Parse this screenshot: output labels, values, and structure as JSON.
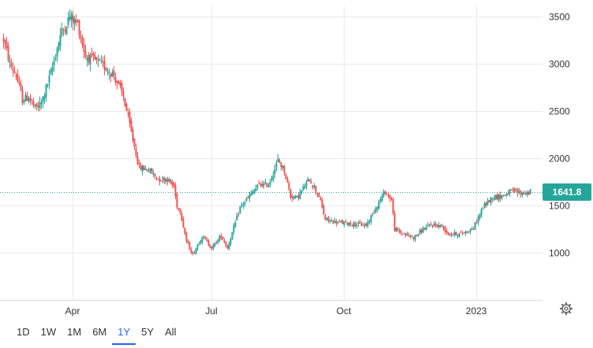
{
  "chart_data": {
    "type": "candlestick",
    "yticks": [
      1000,
      1500,
      2000,
      2500,
      3000,
      3500
    ],
    "ylim": [
      650,
      3700
    ],
    "xticks": [
      "Apr",
      "Jul",
      "Oct",
      "2023"
    ],
    "last_price": 1641.8,
    "last_price_label": "1641.8",
    "grid": true,
    "colors": {
      "up": "#26a69a",
      "down": "#ef5350",
      "price_line": "#26a69a"
    },
    "path": [
      [
        0,
        3260
      ],
      [
        4,
        3000
      ],
      [
        8,
        2880
      ],
      [
        12,
        2620
      ],
      [
        16,
        2650
      ],
      [
        20,
        2520
      ],
      [
        24,
        2580
      ],
      [
        30,
        2900
      ],
      [
        36,
        3300
      ],
      [
        42,
        3500
      ],
      [
        47,
        3420
      ],
      [
        52,
        3080
      ],
      [
        58,
        3030
      ],
      [
        64,
        2970
      ],
      [
        70,
        2880
      ],
      [
        76,
        2650
      ],
      [
        82,
        2200
      ],
      [
        86,
        1900
      ],
      [
        92,
        1880
      ],
      [
        98,
        1780
      ],
      [
        104,
        1780
      ],
      [
        108,
        1700
      ],
      [
        110,
        1500
      ],
      [
        112,
        1450
      ],
      [
        116,
        1120
      ],
      [
        120,
        980
      ],
      [
        126,
        1180
      ],
      [
        132,
        1050
      ],
      [
        138,
        1180
      ],
      [
        142,
        1050
      ],
      [
        150,
        1480
      ],
      [
        156,
        1600
      ],
      [
        162,
        1720
      ],
      [
        168,
        1720
      ],
      [
        174,
        1980
      ],
      [
        178,
        1870
      ],
      [
        182,
        1600
      ],
      [
        186,
        1580
      ],
      [
        190,
        1680
      ],
      [
        194,
        1780
      ],
      [
        200,
        1600
      ],
      [
        204,
        1350
      ],
      [
        212,
        1320
      ],
      [
        220,
        1310
      ],
      [
        230,
        1290
      ],
      [
        236,
        1480
      ],
      [
        242,
        1650
      ],
      [
        246,
        1560
      ],
      [
        248,
        1250
      ],
      [
        252,
        1210
      ],
      [
        260,
        1160
      ],
      [
        266,
        1250
      ],
      [
        272,
        1300
      ],
      [
        278,
        1280
      ],
      [
        282,
        1200
      ],
      [
        290,
        1200
      ],
      [
        298,
        1260
      ],
      [
        304,
        1480
      ],
      [
        310,
        1590
      ],
      [
        316,
        1600
      ],
      [
        322,
        1650
      ],
      [
        328,
        1630
      ],
      [
        334,
        1642
      ]
    ],
    "x_positions": {
      "Apr": 44,
      "Jul": 132,
      "Oct": 216,
      "2023": 300
    },
    "x_span": 334
  },
  "ranges": [
    "1D",
    "1W",
    "1M",
    "6M",
    "1Y",
    "5Y",
    "All"
  ],
  "active_range": "1Y",
  "settings_icon": "gear-icon"
}
